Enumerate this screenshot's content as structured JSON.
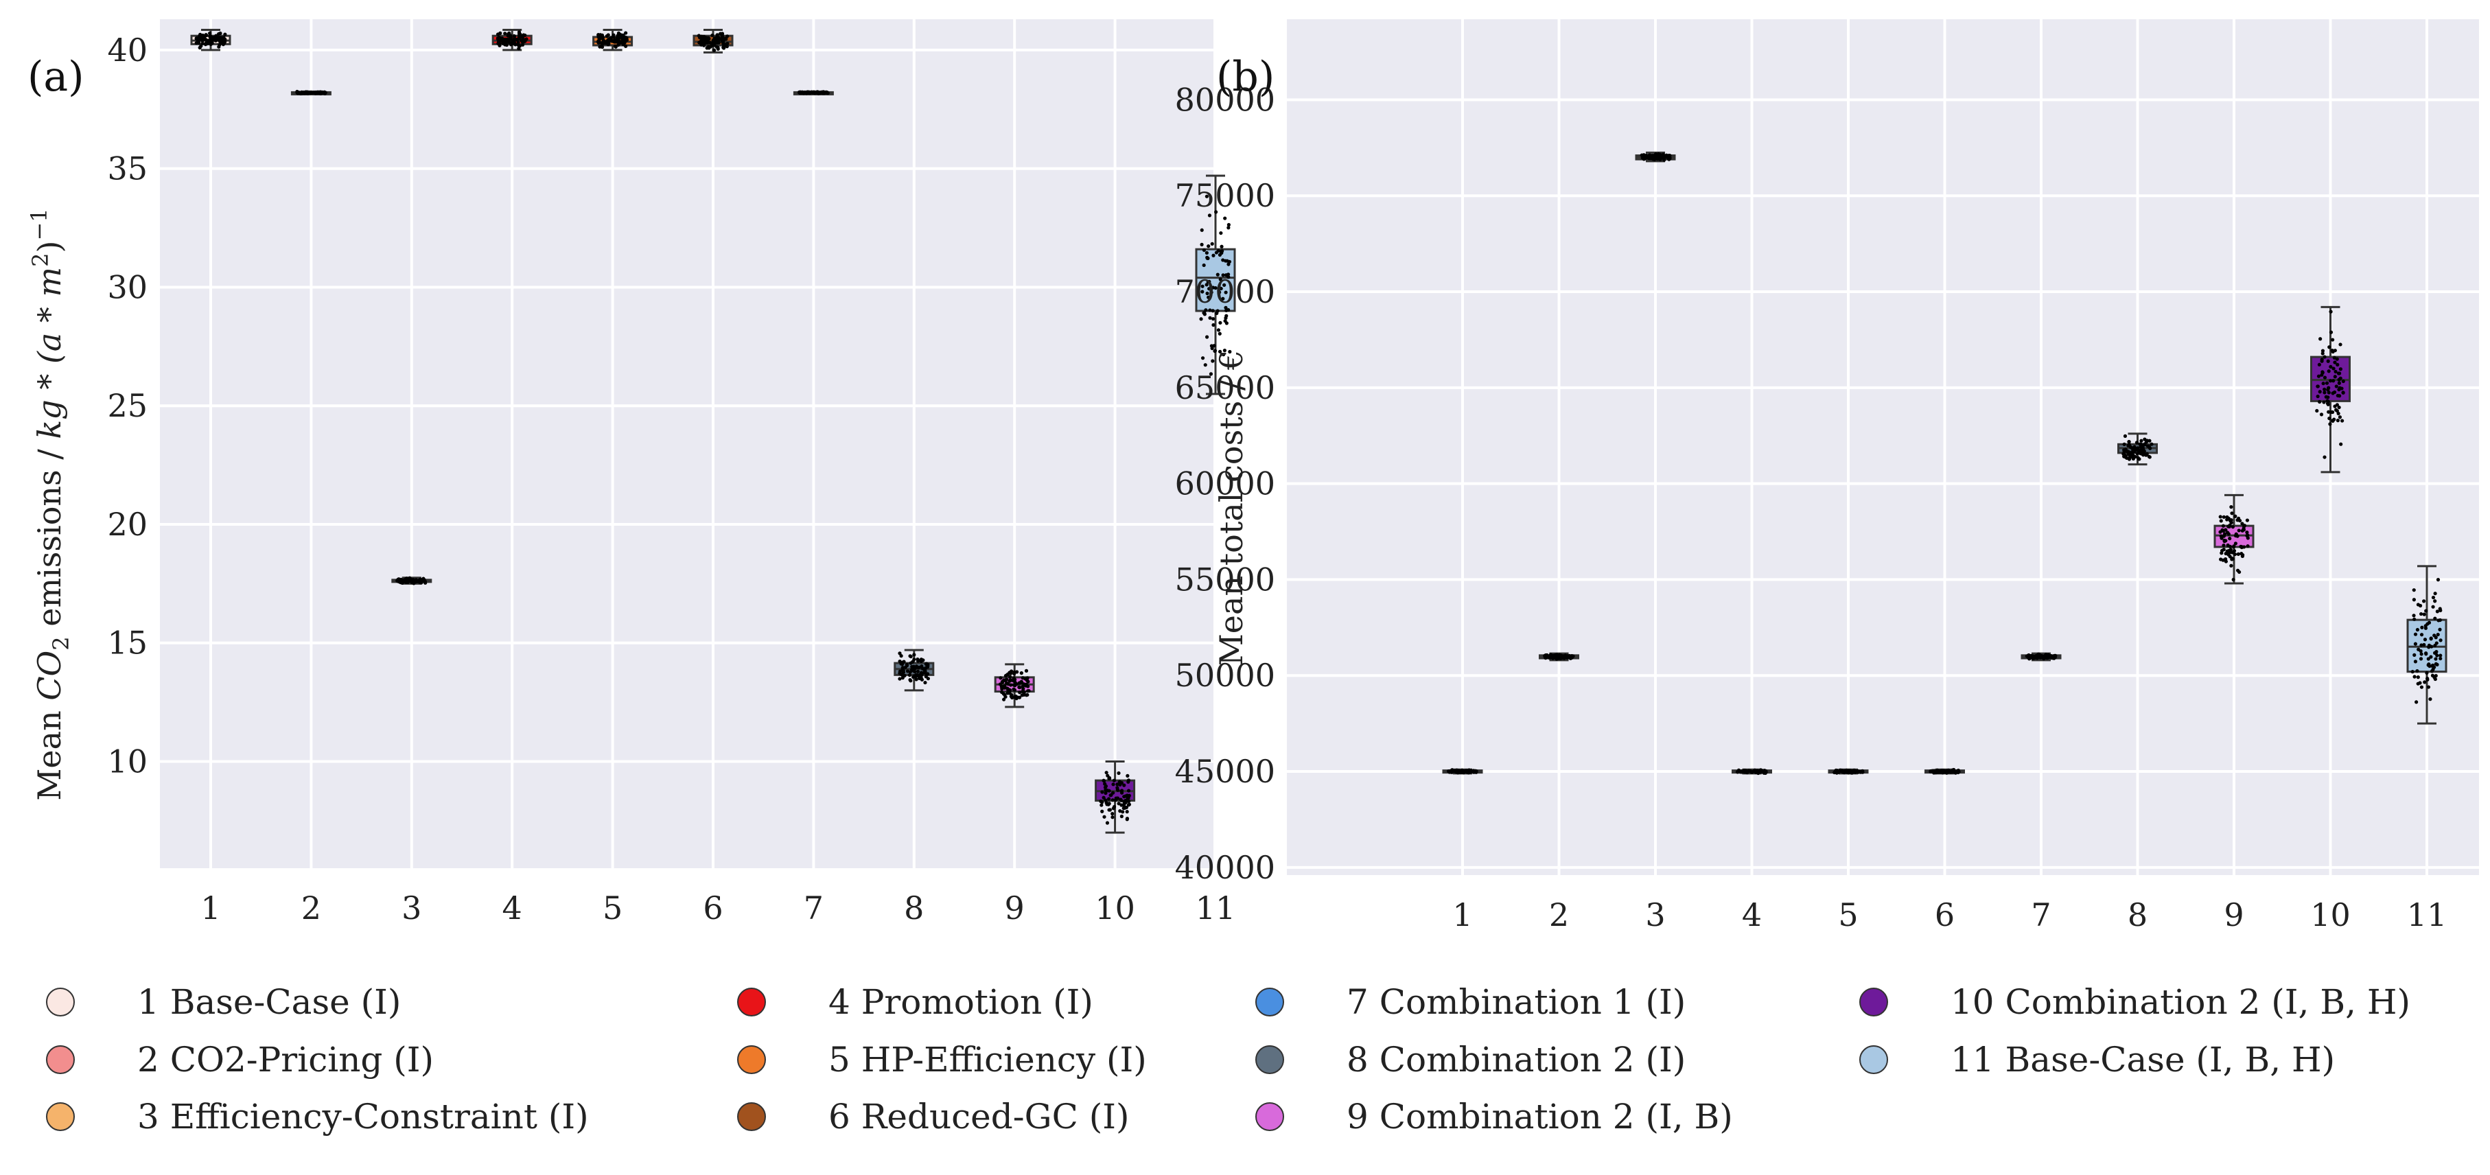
{
  "figure_labels": {
    "a": "(a)",
    "b": "(b)"
  },
  "colors": {
    "background": "#EAEAF2",
    "grid": "#FFFFFF",
    "points": "#000000",
    "box_edge": "#333333"
  },
  "legend": {
    "items": [
      {
        "id": "1",
        "label": "1 Base-Case (I)",
        "color": "#FBE8E3"
      },
      {
        "id": "2",
        "label": "2 CO2-Pricing (I)",
        "color": "#F28E8E"
      },
      {
        "id": "3",
        "label": "3 Efficiency-Constraint (I)",
        "color": "#F5B36B"
      },
      {
        "id": "4",
        "label": "4 Promotion (I)",
        "color": "#E81418"
      },
      {
        "id": "5",
        "label": "5 HP-Efficiency (I)",
        "color": "#EE7A2A"
      },
      {
        "id": "6",
        "label": "6 Reduced-GC (I)",
        "color": "#A1521E"
      },
      {
        "id": "7",
        "label": "7 Combination 1 (I)",
        "color": "#4A8FE0"
      },
      {
        "id": "8",
        "label": "8 Combination 2 (I)",
        "color": "#5F7080"
      },
      {
        "id": "9",
        "label": "9 Combination 2 (I, B)",
        "color": "#D86ADB"
      },
      {
        "id": "10",
        "label": "10 Combination 2 (I, B, H)",
        "color": "#6E1A9A"
      },
      {
        "id": "11",
        "label": "11 Base-Case (I, B, H)",
        "color": "#A9C8E3"
      }
    ]
  },
  "chart_data": [
    {
      "type": "box",
      "panel": "(a)",
      "title": "",
      "xlabel": "",
      "ylabel": "Mean CO2 emissions / kg*(a*m2)-1",
      "ylabel_parts": {
        "pre": "Mean ",
        "co": "CO",
        "co_sub": "2",
        "mid": " emissions / ",
        "math": "kg * (a * m",
        "m_sup": "2",
        "post": ")",
        "exp": "−1"
      },
      "ylim": [
        5.5,
        41.3
      ],
      "yticks": [
        "10",
        "15",
        "20",
        "25",
        "30",
        "35",
        "40"
      ],
      "categories": [
        "1",
        "2",
        "3",
        "4",
        "5",
        "6",
        "7",
        "8",
        "9",
        "10",
        "11"
      ],
      "boxes": [
        {
          "q1": 40.25,
          "median": 40.4,
          "q3": 40.6,
          "whislo": 40.0,
          "whishi": 40.85
        },
        {
          "q1": 38.18,
          "median": 38.2,
          "q3": 38.22,
          "whislo": 38.15,
          "whishi": 38.25
        },
        {
          "q1": 17.58,
          "median": 17.62,
          "q3": 17.66,
          "whislo": 17.5,
          "whishi": 17.75
        },
        {
          "q1": 40.25,
          "median": 40.4,
          "q3": 40.6,
          "whislo": 40.0,
          "whishi": 40.85
        },
        {
          "q1": 40.2,
          "median": 40.35,
          "q3": 40.55,
          "whislo": 40.0,
          "whishi": 40.85
        },
        {
          "q1": 40.2,
          "median": 40.35,
          "q3": 40.6,
          "whislo": 39.9,
          "whishi": 40.85
        },
        {
          "q1": 38.18,
          "median": 38.2,
          "q3": 38.22,
          "whislo": 38.15,
          "whishi": 38.25
        },
        {
          "q1": 13.65,
          "median": 13.9,
          "q3": 14.15,
          "whislo": 13.0,
          "whishi": 14.7
        },
        {
          "q1": 12.95,
          "median": 13.25,
          "q3": 13.55,
          "whislo": 12.3,
          "whishi": 14.1
        },
        {
          "q1": 8.35,
          "median": 8.75,
          "q3": 9.2,
          "whislo": 7.0,
          "whishi": 10.0
        },
        {
          "q1": 29.0,
          "median": 30.4,
          "q3": 31.6,
          "whislo": 25.5,
          "whishi": 34.7
        }
      ]
    },
    {
      "type": "box",
      "panel": "(b)",
      "title": "",
      "xlabel": "",
      "ylabel": "Mean total costs / €",
      "ylim": [
        39600,
        84200
      ],
      "yticks": [
        "40000",
        "45000",
        "50000",
        "55000",
        "60000",
        "65000",
        "70000",
        "75000",
        "80000"
      ],
      "categories": [
        "1",
        "2",
        "3",
        "4",
        "5",
        "6",
        "7",
        "8",
        "9",
        "10",
        "11"
      ],
      "boxes": [
        {
          "q1": 44950,
          "median": 45000,
          "q3": 45050,
          "whislo": 44900,
          "whishi": 45100
        },
        {
          "q1": 50900,
          "median": 50950,
          "q3": 51050,
          "whislo": 50800,
          "whishi": 51150
        },
        {
          "q1": 76900,
          "median": 77000,
          "q3": 77100,
          "whislo": 76800,
          "whishi": 77250
        },
        {
          "q1": 44950,
          "median": 45000,
          "q3": 45050,
          "whislo": 44900,
          "whishi": 45100
        },
        {
          "q1": 44950,
          "median": 45000,
          "q3": 45050,
          "whislo": 44900,
          "whishi": 45100
        },
        {
          "q1": 44950,
          "median": 45000,
          "q3": 45050,
          "whislo": 44900,
          "whishi": 45100
        },
        {
          "q1": 50900,
          "median": 50950,
          "q3": 51050,
          "whislo": 50800,
          "whishi": 51150
        },
        {
          "q1": 61600,
          "median": 61850,
          "q3": 62050,
          "whislo": 61000,
          "whishi": 62600
        },
        {
          "q1": 56700,
          "median": 57300,
          "q3": 57800,
          "whislo": 54800,
          "whishi": 59400
        },
        {
          "q1": 64300,
          "median": 65400,
          "q3": 66600,
          "whislo": 60600,
          "whishi": 69200
        },
        {
          "q1": 50200,
          "median": 51500,
          "q3": 52900,
          "whislo": 47500,
          "whishi": 55700
        }
      ]
    }
  ]
}
